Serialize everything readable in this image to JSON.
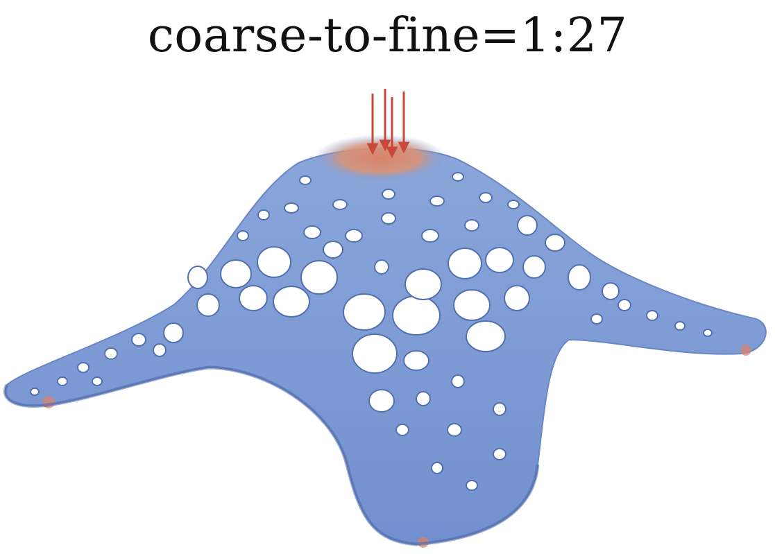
{
  "figure": {
    "title": "coarse-to-fine=1:27",
    "colors": {
      "surface": "#7d9bd4",
      "surface_shade": "#5a78b8",
      "stress_high": "#d9826a",
      "load_arrow": "#c8493c",
      "background": "#ffffff"
    }
  }
}
